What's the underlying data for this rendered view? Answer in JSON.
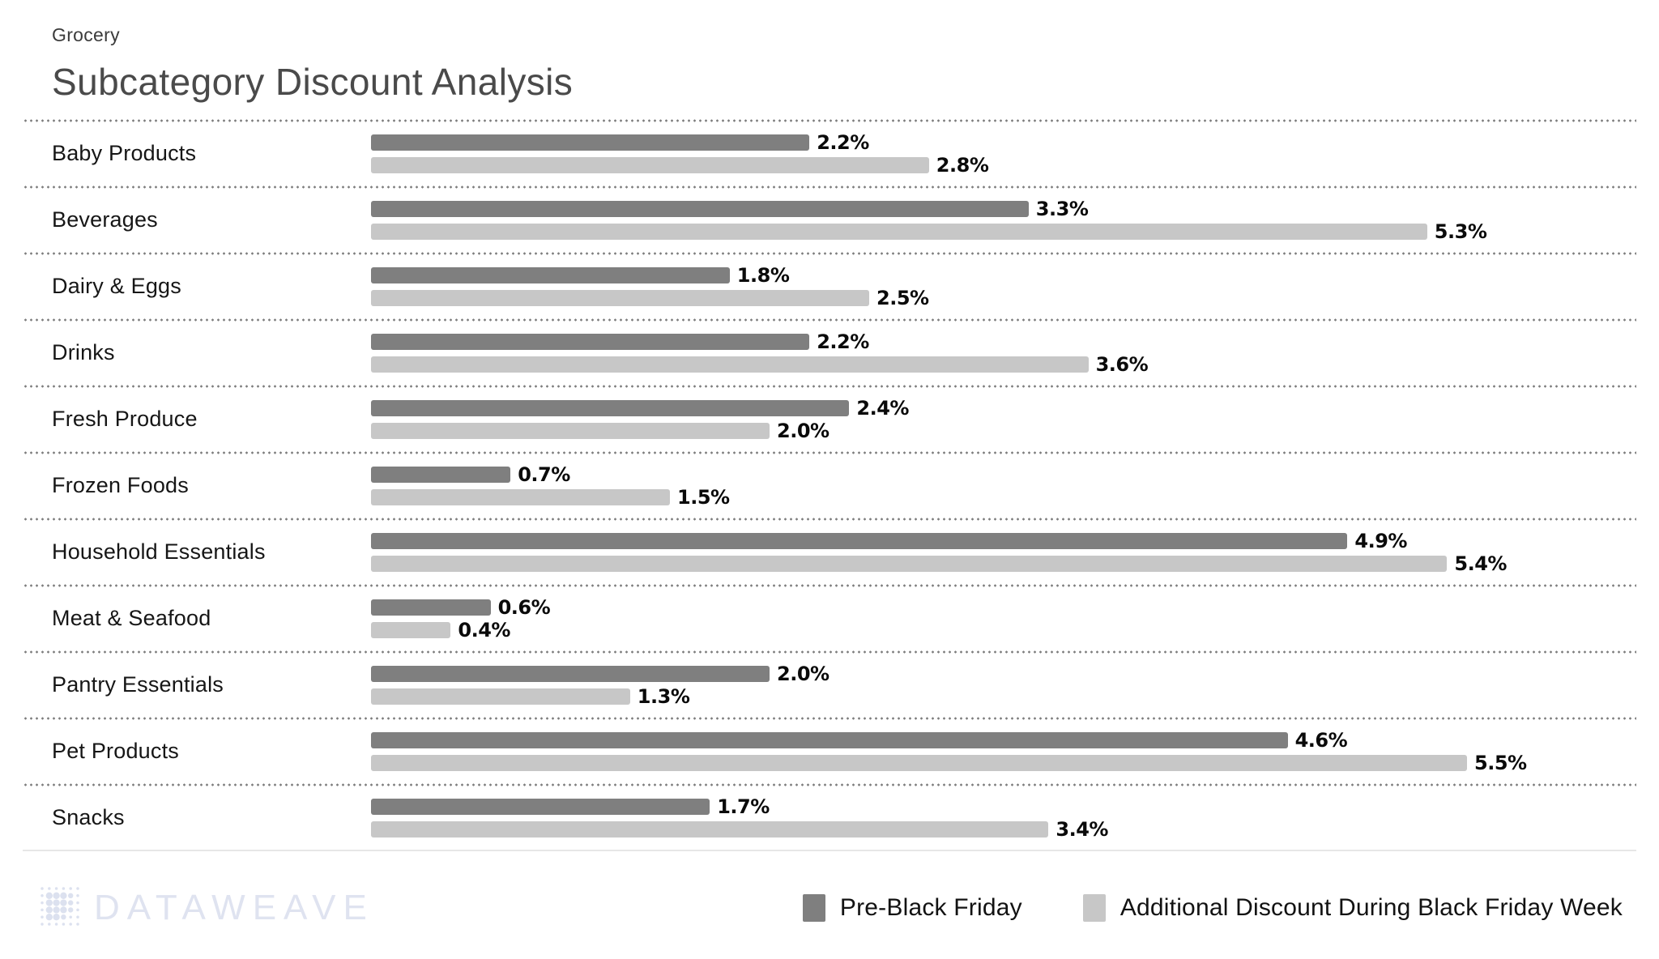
{
  "header": {
    "eyebrow": "Grocery",
    "title": "Subcategory Discount Analysis"
  },
  "chart_data": {
    "type": "bar",
    "orientation": "horizontal",
    "unit": "%",
    "title": "Subcategory Discount Analysis",
    "subtitle": "Grocery",
    "categories": [
      "Baby Products",
      "Beverages",
      "Dairy & Eggs",
      "Drinks",
      "Fresh Produce",
      "Frozen Foods",
      "Household Essentials",
      "Meat & Seafood",
      "Pantry Essentials",
      "Pet Products",
      "Snacks"
    ],
    "series": [
      {
        "name": "Pre-Black Friday",
        "color": "#7f7f7f",
        "values": [
          2.2,
          3.3,
          1.8,
          2.2,
          2.4,
          0.7,
          4.9,
          0.6,
          2.0,
          4.6,
          1.7
        ]
      },
      {
        "name": "Additional Discount During Black Friday Week",
        "color": "#c7c7c7",
        "values": [
          2.8,
          5.3,
          2.5,
          3.6,
          2.0,
          1.5,
          5.4,
          0.4,
          1.3,
          5.5,
          3.4
        ]
      }
    ],
    "value_label_format": "{value}%",
    "xlim": [
      0,
      5.5
    ],
    "grid": "dotted-row-separators",
    "legend_position": "bottom-right"
  },
  "footer": {
    "logo_text": "DATAWEAVE"
  }
}
